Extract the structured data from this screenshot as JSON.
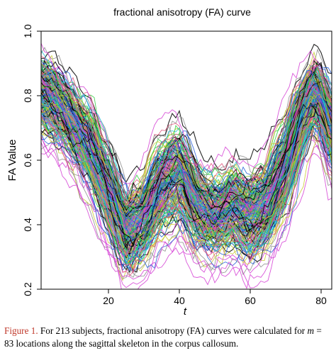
{
  "chart_data": {
    "type": "line",
    "title": "fractional anisotropy (FA) curve",
    "xlabel": "t",
    "ylabel": "FA Value",
    "xlim": [
      1,
      83
    ],
    "ylim": [
      0.2,
      1.0
    ],
    "xticks": [
      20,
      40,
      60,
      80
    ],
    "yticks": [
      0.2,
      0.4,
      0.6,
      0.8,
      1.0
    ],
    "xtick_labels": [
      "20",
      "40",
      "60",
      "80"
    ],
    "ytick_labels": [
      "0.2",
      "0.4",
      "0.6",
      "0.8",
      "1.0"
    ],
    "grid": false,
    "legend": "none",
    "n_curves": 213,
    "n_points": 83,
    "mean_curve": {
      "x": [
        1,
        5,
        10,
        15,
        20,
        25,
        30,
        35,
        40,
        45,
        50,
        55,
        60,
        65,
        70,
        75,
        78,
        80,
        83
      ],
      "y": [
        0.8,
        0.77,
        0.7,
        0.62,
        0.5,
        0.36,
        0.4,
        0.51,
        0.55,
        0.44,
        0.41,
        0.45,
        0.41,
        0.45,
        0.57,
        0.74,
        0.8,
        0.77,
        0.67
      ]
    },
    "band": {
      "x": [
        1,
        5,
        10,
        15,
        20,
        25,
        30,
        35,
        40,
        45,
        50,
        55,
        60,
        65,
        70,
        75,
        78,
        80,
        83
      ],
      "low": [
        0.62,
        0.62,
        0.56,
        0.46,
        0.32,
        0.22,
        0.25,
        0.32,
        0.34,
        0.27,
        0.27,
        0.3,
        0.25,
        0.28,
        0.38,
        0.56,
        0.62,
        0.58,
        0.5
      ],
      "high": [
        0.92,
        0.92,
        0.85,
        0.8,
        0.66,
        0.54,
        0.58,
        0.7,
        0.73,
        0.62,
        0.58,
        0.62,
        0.6,
        0.64,
        0.74,
        0.86,
        0.9,
        0.88,
        0.83
      ]
    },
    "series_colors": [
      "#000000",
      "#e0507a",
      "#2ecc40",
      "#1f5bd6",
      "#22c3d6",
      "#d43bd4",
      "#c9c92a",
      "#8a8a8a"
    ]
  },
  "caption": {
    "lead": "Figure 1.",
    "text_before": " For 213 subjects, fractional anisotropy (FA) curves were calculated for ",
    "math": "m",
    "text_after": " = 83 locations along the sagittal skeleton in the corpus callosum."
  }
}
